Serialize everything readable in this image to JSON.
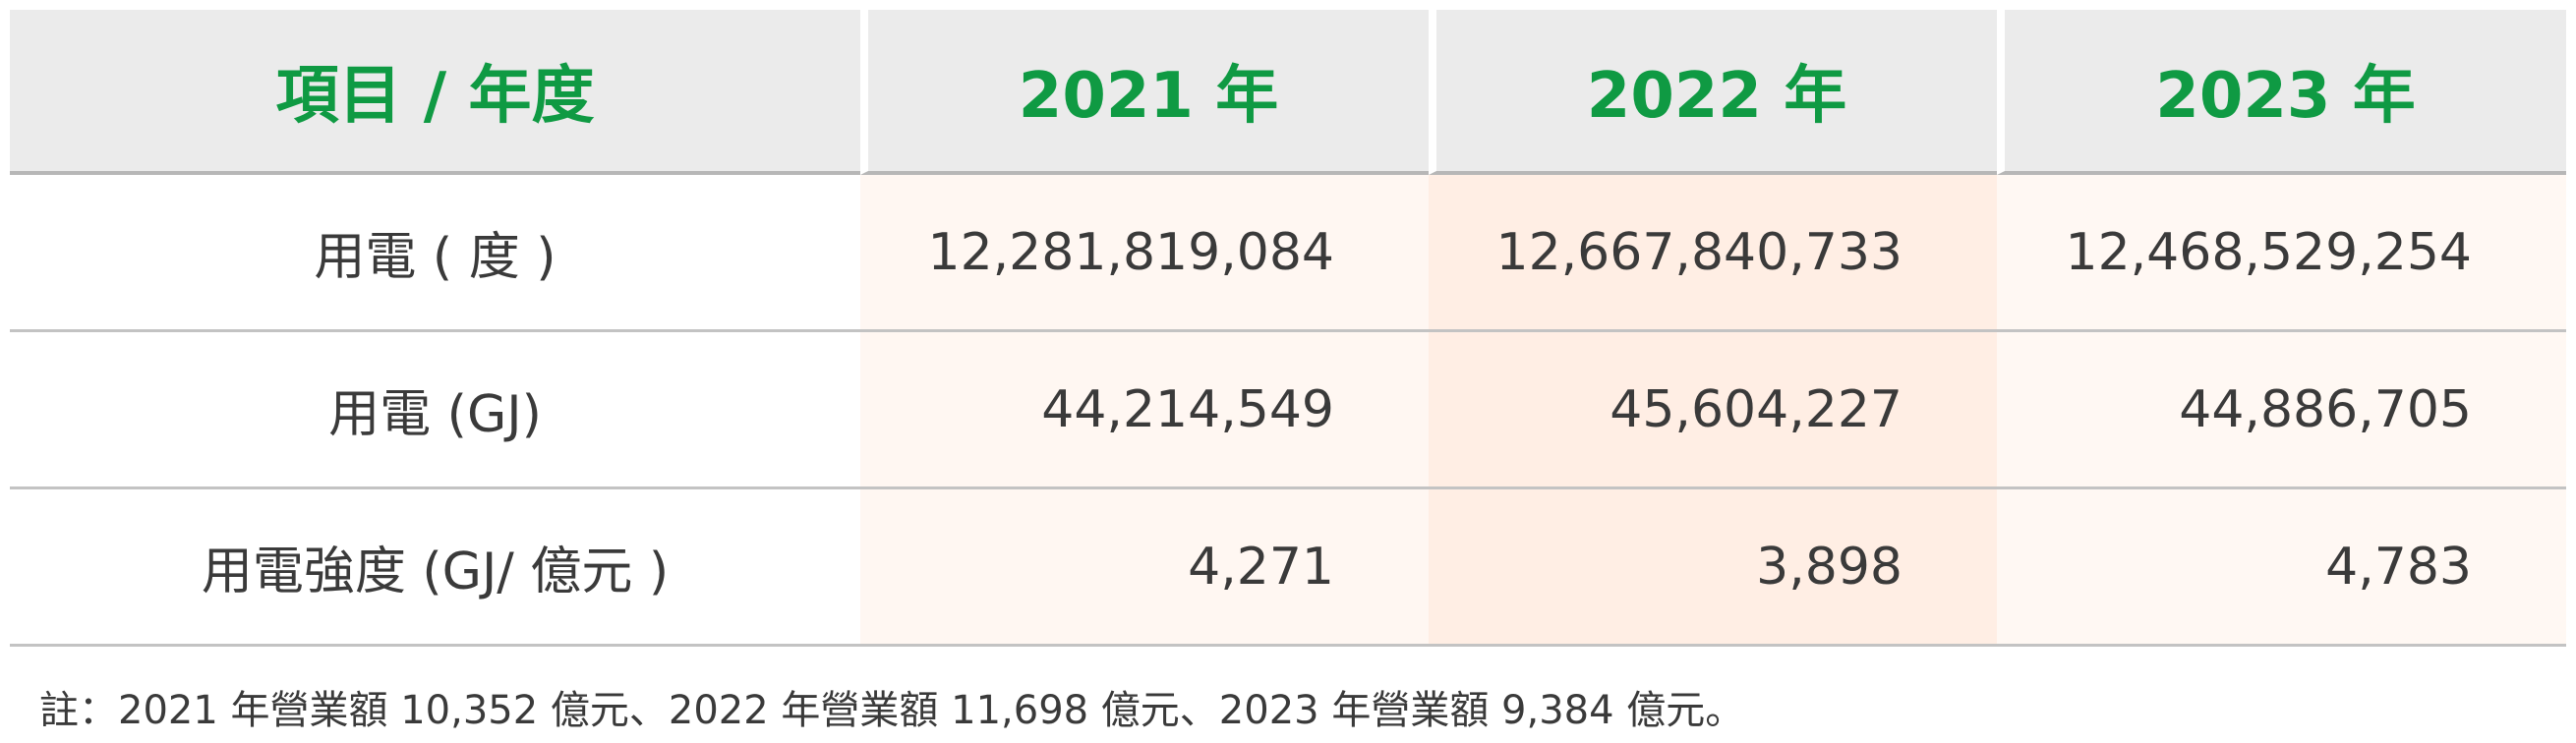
{
  "table": {
    "headers": [
      "項目 / 年度",
      "2021 年",
      "2022 年",
      "2023 年"
    ],
    "rows": [
      {
        "label": "用電 ( 度 )",
        "values": [
          "12,281,819,084",
          "12,667,840,733",
          "12,468,529,254"
        ]
      },
      {
        "label": "用電 (GJ)",
        "values": [
          "44,214,549",
          "45,604,227",
          "44,886,705"
        ]
      },
      {
        "label": "用電強度 (GJ/ 億元 )",
        "values": [
          "4,271",
          "3,898",
          "4,783"
        ]
      }
    ]
  },
  "note": "註：2021 年營業額 10,352 億元、2022 年營業額 11,698 億元、2023 年營業額 9,384 億元。",
  "colors": {
    "header_text": "#0f9a43",
    "header_bg": "#ebebeb",
    "body_text": "#3a3a3a"
  }
}
